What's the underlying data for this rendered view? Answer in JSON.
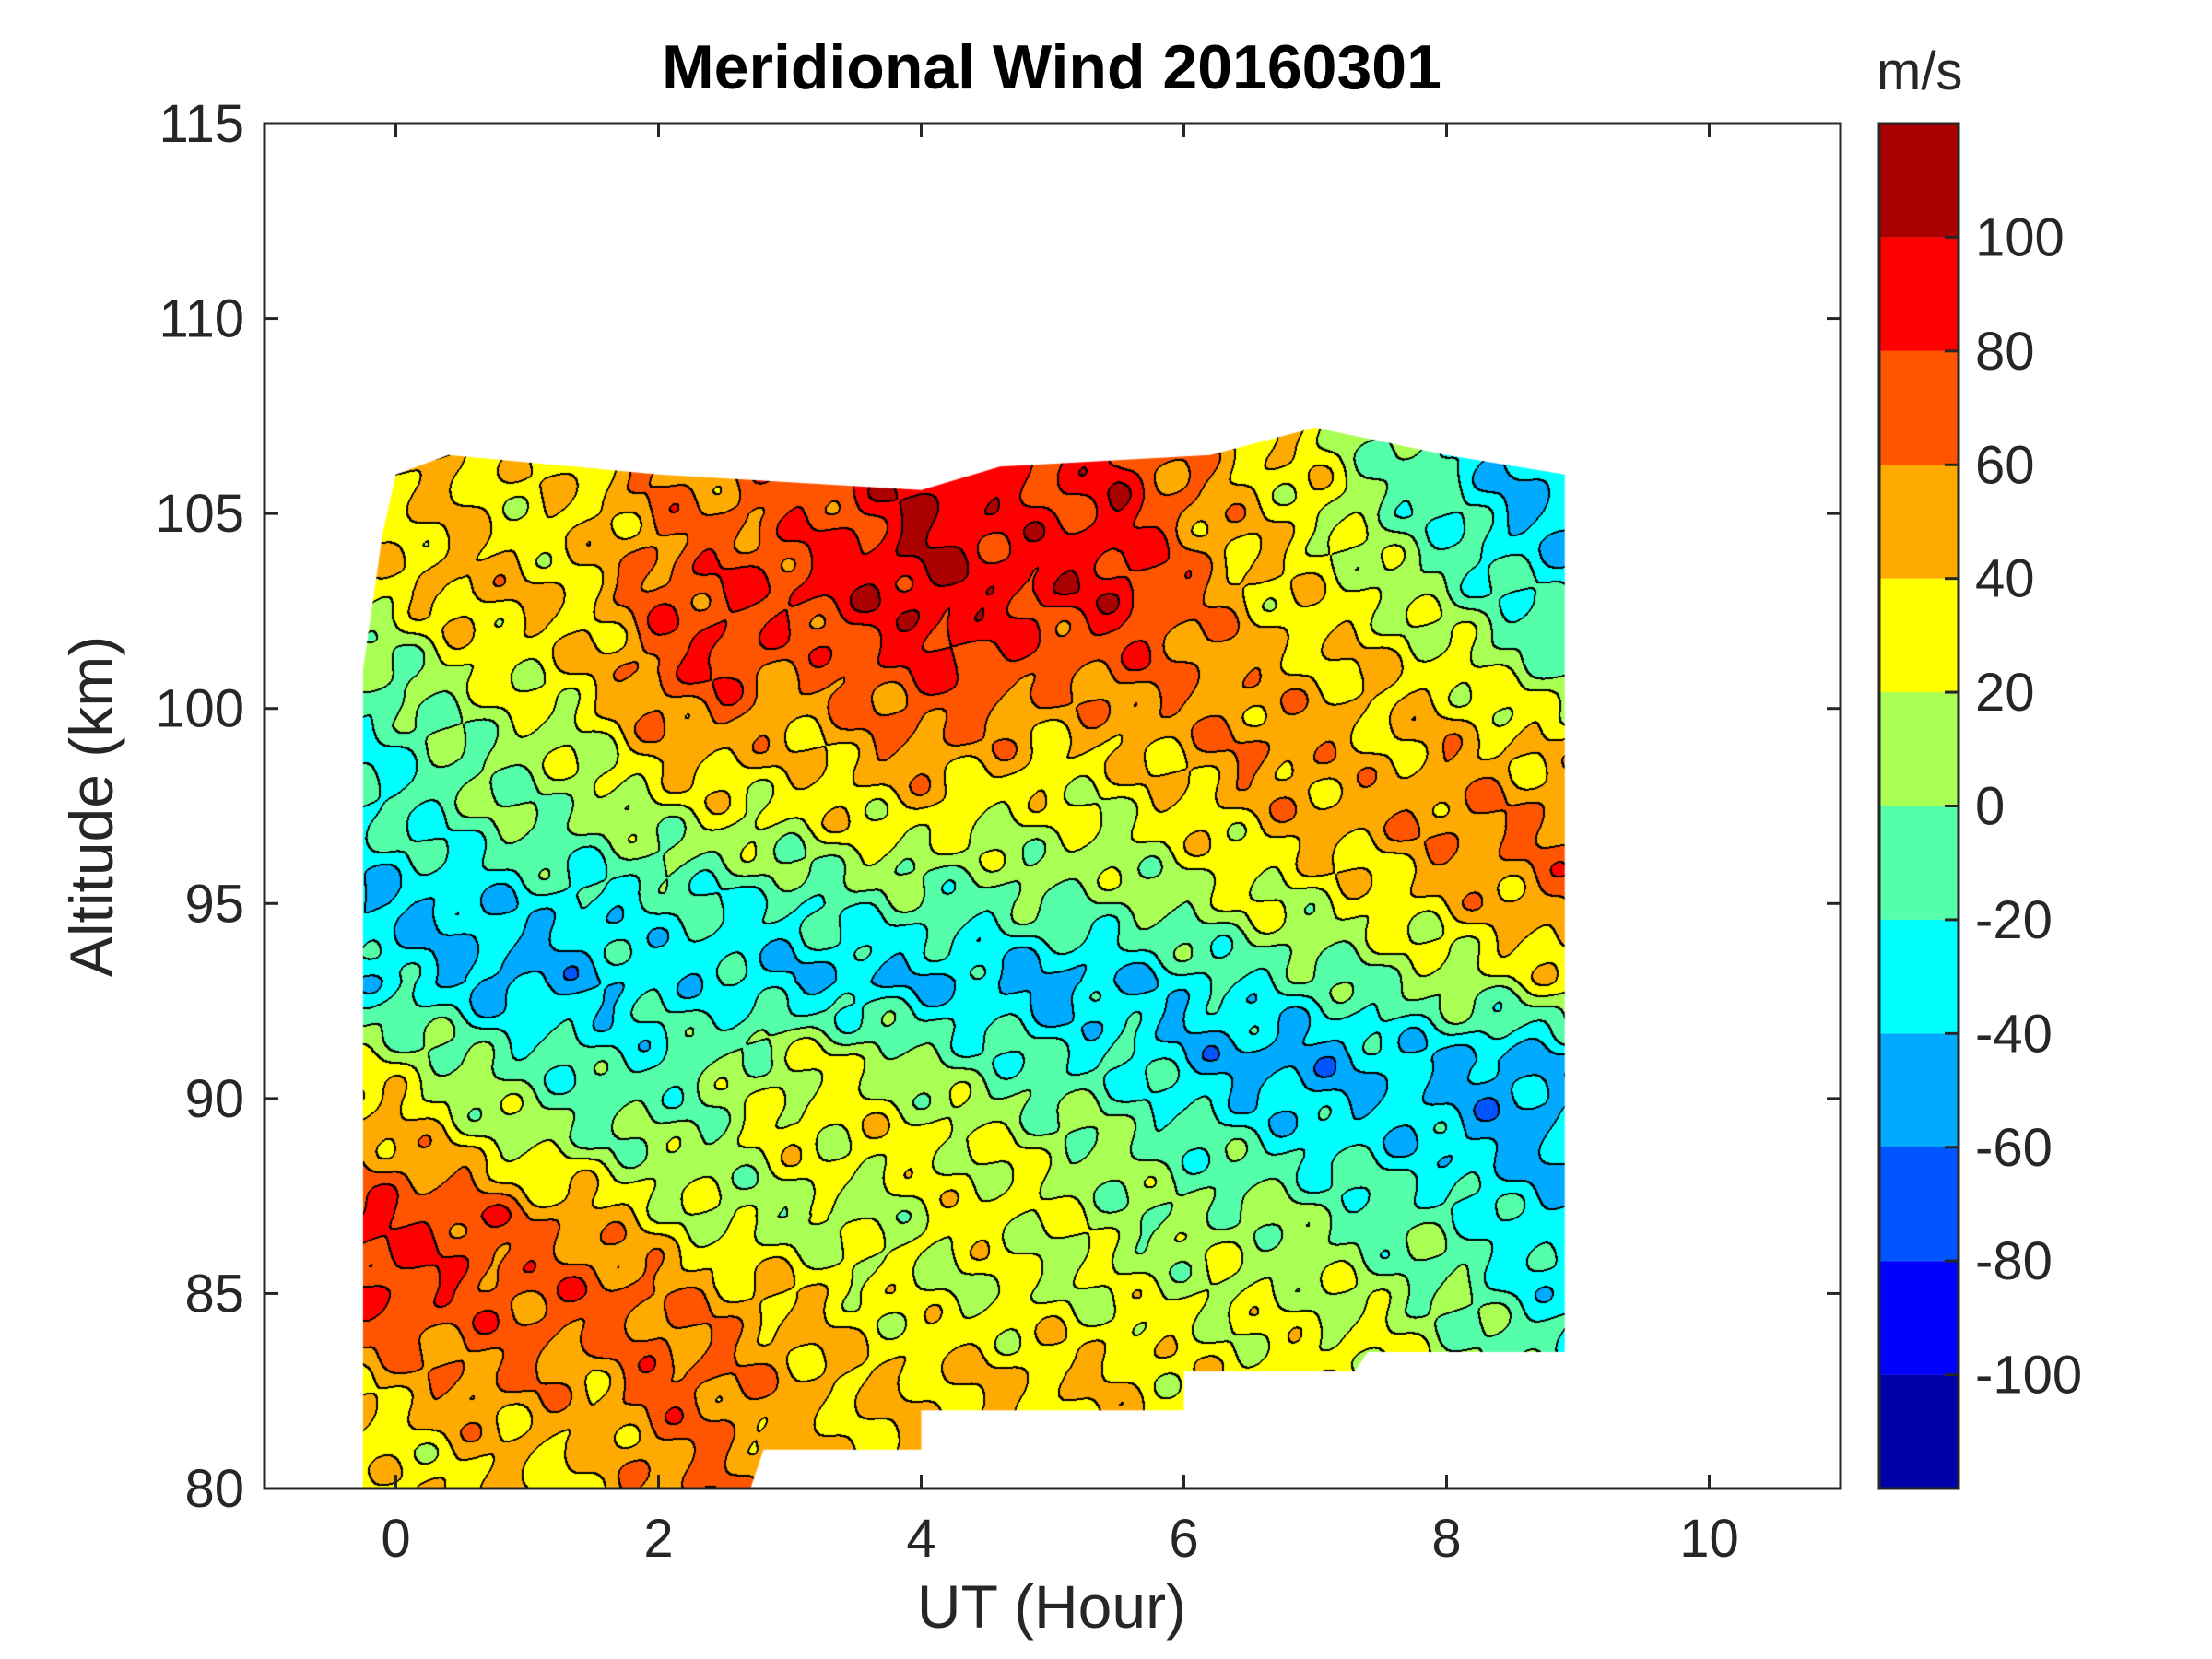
{
  "chart_data": {
    "type": "heatmap",
    "subtype": "filled-contour",
    "title": "Meridional Wind 20160301",
    "xlabel": "UT (Hour)",
    "ylabel": "Altitude (km)",
    "xlim": [
      -1,
      11
    ],
    "ylim": [
      80,
      115
    ],
    "xticks": [
      0,
      2,
      4,
      6,
      8,
      10
    ],
    "yticks": [
      80,
      85,
      90,
      95,
      100,
      105,
      110,
      115
    ],
    "xtick_labels": [
      "0",
      "2",
      "4",
      "6",
      "8",
      "10"
    ],
    "ytick_labels": [
      "80",
      "85",
      "90",
      "95",
      "100",
      "105",
      "110",
      "115"
    ],
    "colorbar": {
      "label": "m/s",
      "range": [
        -120,
        120
      ],
      "levels": [
        -120,
        -100,
        -80,
        -60,
        -40,
        -20,
        0,
        20,
        40,
        60,
        80,
        100,
        120
      ],
      "ticks": [
        -100,
        -80,
        -60,
        -40,
        -20,
        0,
        20,
        40,
        60,
        80,
        100
      ],
      "tick_labels": [
        "-100",
        "-80",
        "-60",
        "-40",
        "-20",
        "0",
        "20",
        "40",
        "60",
        "80",
        "100"
      ],
      "colors": [
        "#0000AA",
        "#0000FF",
        "#0055FF",
        "#00AAFF",
        "#00FFFF",
        "#55FFAA",
        "#AAFF55",
        "#FFFF00",
        "#FFAA00",
        "#FF5500",
        "#FF0000",
        "#AA0000"
      ]
    },
    "grid_x": [
      0,
      0.5,
      1,
      1.5,
      2,
      2.5,
      3,
      3.5,
      4,
      4.5,
      5,
      5.5,
      6,
      6.5,
      7,
      7.5,
      8,
      8.5,
      9
    ],
    "grid_y": [
      81,
      83,
      85,
      87,
      89,
      91,
      93,
      95,
      97,
      99,
      101,
      103,
      105
    ],
    "values": [
      [
        30,
        40,
        40,
        40,
        60,
        60,
        40,
        40,
        40,
        40,
        40,
        40,
        30,
        30,
        30,
        30,
        10,
        0,
        -10
      ],
      [
        50,
        60,
        60,
        50,
        70,
        60,
        50,
        40,
        40,
        40,
        40,
        40,
        30,
        30,
        30,
        30,
        10,
        0,
        -10
      ],
      [
        80,
        70,
        70,
        70,
        60,
        50,
        40,
        30,
        20,
        20,
        20,
        20,
        20,
        20,
        20,
        10,
        0,
        -20,
        -30
      ],
      [
        80,
        80,
        60,
        50,
        30,
        10,
        10,
        10,
        20,
        30,
        20,
        10,
        0,
        10,
        0,
        -10,
        -10,
        -30,
        -40
      ],
      [
        50,
        30,
        10,
        0,
        0,
        10,
        30,
        30,
        30,
        20,
        10,
        0,
        -10,
        -20,
        -30,
        -30,
        -40,
        -50,
        -40
      ],
      [
        20,
        0,
        -10,
        -20,
        -20,
        0,
        20,
        20,
        0,
        -10,
        -20,
        -20,
        -40,
        -50,
        -50,
        -40,
        -40,
        -50,
        -40
      ],
      [
        -30,
        -40,
        -50,
        -40,
        -30,
        -30,
        -40,
        -40,
        -40,
        -40,
        -50,
        -40,
        -30,
        -20,
        -10,
        0,
        10,
        20,
        30
      ],
      [
        -40,
        -40,
        -30,
        -30,
        -20,
        -20,
        -20,
        -10,
        -10,
        -10,
        0,
        0,
        10,
        20,
        20,
        30,
        40,
        50,
        70
      ],
      [
        -20,
        -10,
        0,
        0,
        10,
        20,
        20,
        30,
        30,
        20,
        20,
        20,
        30,
        40,
        50,
        50,
        60,
        60,
        60
      ],
      [
        -20,
        0,
        10,
        20,
        50,
        50,
        40,
        50,
        60,
        50,
        40,
        40,
        50,
        60,
        50,
        40,
        50,
        40,
        40
      ],
      [
        0,
        20,
        30,
        40,
        70,
        80,
        60,
        70,
        80,
        80,
        60,
        70,
        60,
        50,
        40,
        40,
        30,
        10,
        0
      ],
      [
        30,
        50,
        40,
        40,
        70,
        80,
        80,
        90,
        100,
        90,
        90,
        90,
        70,
        40,
        30,
        20,
        0,
        -20,
        -30
      ],
      [
        40,
        40,
        30,
        40,
        60,
        60,
        70,
        80,
        100,
        90,
        80,
        90,
        60,
        40,
        30,
        0,
        -20,
        -40,
        -40
      ]
    ],
    "data_boundary": [
      [
        -0.25,
        80
      ],
      [
        2.7,
        80
      ],
      [
        2.8,
        81
      ],
      [
        4.0,
        81
      ],
      [
        4.0,
        82
      ],
      [
        6.0,
        82
      ],
      [
        6.0,
        83
      ],
      [
        7.3,
        83
      ],
      [
        7.4,
        83.5
      ],
      [
        8.9,
        83.5
      ],
      [
        8.9,
        106
      ],
      [
        8.0,
        106.5
      ],
      [
        7.0,
        107.2
      ],
      [
        6.2,
        106.5
      ],
      [
        4.6,
        106.2
      ],
      [
        4.0,
        105.6
      ],
      [
        2.0,
        106
      ],
      [
        0.4,
        106.5
      ],
      [
        0,
        106
      ],
      [
        -0.1,
        104.5
      ],
      [
        -0.25,
        101
      ]
    ]
  }
}
